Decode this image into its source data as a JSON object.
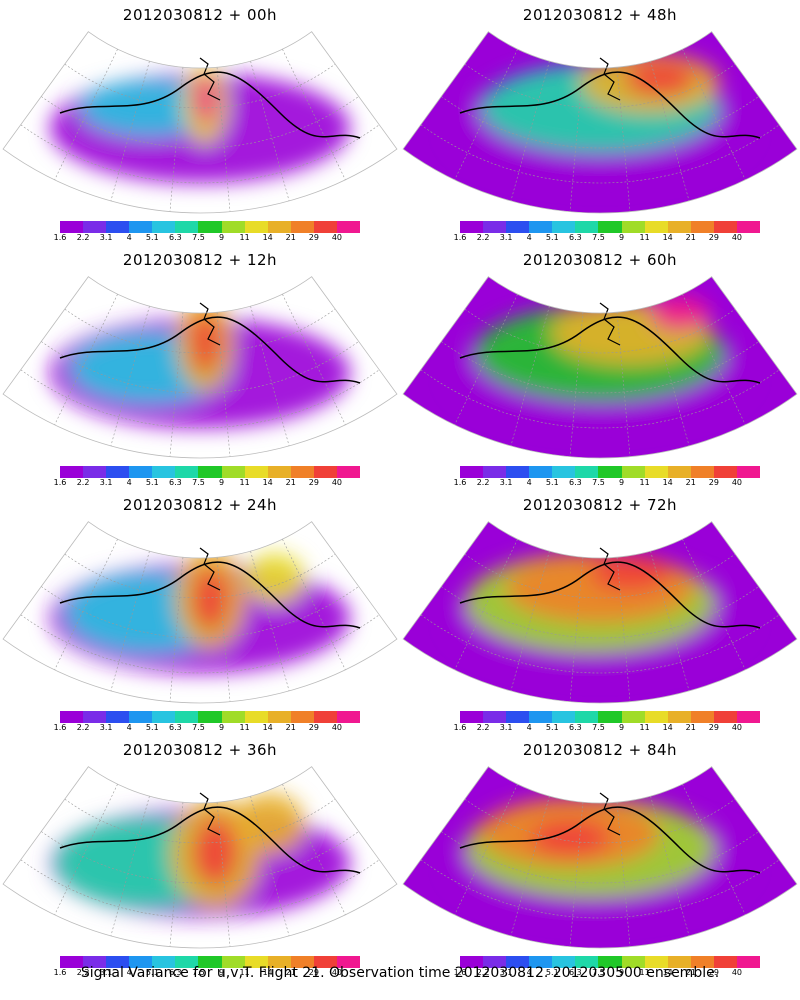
{
  "panels": [
    {
      "title": "2012030812  + 00h"
    },
    {
      "title": "2012030812  + 48h"
    },
    {
      "title": "2012030812  + 12h"
    },
    {
      "title": "2012030812  + 60h"
    },
    {
      "title": "2012030812  + 24h"
    },
    {
      "title": "2012030812  + 72h"
    },
    {
      "title": "2012030812  + 36h"
    },
    {
      "title": "2012030812  + 84h"
    }
  ],
  "colorbar": {
    "colors": [
      "#9a00d8",
      "#7a2ce8",
      "#2c4ef0",
      "#1e96f0",
      "#28c4e0",
      "#1ed8a8",
      "#20c828",
      "#a0dc28",
      "#e8dc28",
      "#e8b028",
      "#f08028",
      "#f04038",
      "#f01890"
    ],
    "labels": [
      "1.6",
      "2.2",
      "3.1",
      "4",
      "5.1",
      "6.3",
      "7.5",
      "9",
      "11",
      "14",
      "21",
      "29",
      "40"
    ]
  },
  "footer": "Signal Variance for u,v,T. Flight 21. Observation time 2012030812. 2012030500 ensemble."
}
